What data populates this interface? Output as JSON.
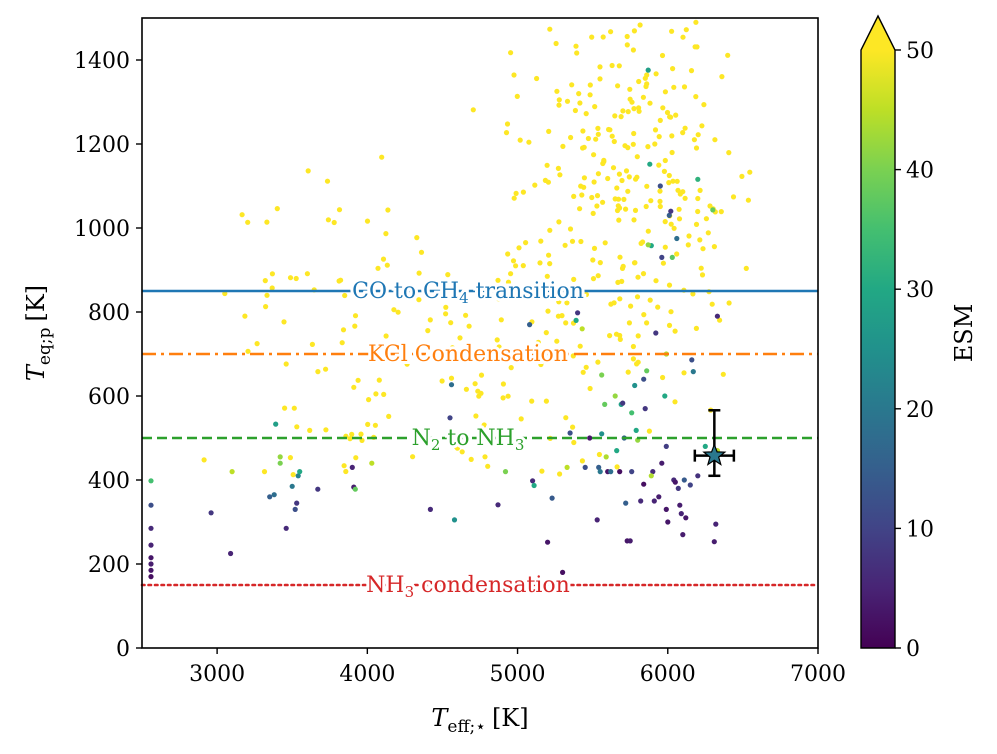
{
  "chart_data": {
    "type": "scatter",
    "xlabel": {
      "main": "T",
      "sub": "eff;⋆",
      "unit": "[K]"
    },
    "ylabel": {
      "main": "T",
      "sub": "eq;p",
      "unit": "[K]"
    },
    "xlim": [
      2500,
      7000
    ],
    "ylim": [
      0,
      1500
    ],
    "x_ticks": [
      3000,
      4000,
      5000,
      6000,
      7000
    ],
    "y_ticks": [
      0,
      200,
      400,
      600,
      800,
      1000,
      1200,
      1400
    ],
    "colorbar": {
      "label": "ESM",
      "range": [
        0,
        50
      ],
      "ticks": [
        0,
        10,
        20,
        30,
        40,
        50
      ],
      "extend": "max",
      "colormap": "viridis"
    },
    "reference_lines": [
      {
        "y": 850,
        "label": "CO to CH",
        "sub": "4",
        "label_after": " transition",
        "style": "solid",
        "color": "#1f77b4"
      },
      {
        "y": 700,
        "label": "KCl Condensation",
        "sub": "",
        "label_after": "",
        "style": "dashdot",
        "color": "#ff7f0e"
      },
      {
        "y": 500,
        "label": "N",
        "sub": "2",
        "label_after": " to NH",
        "sub2": "3",
        "style": "dashed",
        "color": "#2ca02c"
      },
      {
        "y": 150,
        "label": "NH",
        "sub": "3",
        "label_after": " condensation",
        "style": "dotted",
        "color": "#d62728"
      }
    ],
    "highlight": {
      "x": 6310,
      "y": 458,
      "x_err": [
        130,
        130
      ],
      "y_err": [
        48,
        108
      ],
      "esm": 20
    },
    "points_low_esm": [
      [
        2560,
        170,
        2
      ],
      [
        2560,
        185,
        3
      ],
      [
        2560,
        200,
        4
      ],
      [
        2560,
        215,
        3
      ],
      [
        2560,
        245,
        5
      ],
      [
        2560,
        285,
        6
      ],
      [
        2560,
        340,
        12
      ],
      [
        2560,
        398,
        35
      ],
      [
        2960,
        322,
        8
      ],
      [
        3090,
        225,
        5
      ],
      [
        3100,
        420,
        45
      ],
      [
        3350,
        360,
        15
      ],
      [
        3380,
        365,
        18
      ],
      [
        3390,
        533,
        28
      ],
      [
        3420,
        440,
        40
      ],
      [
        3420,
        455,
        42
      ],
      [
        3460,
        285,
        6
      ],
      [
        3500,
        385,
        20
      ],
      [
        3520,
        330,
        12
      ],
      [
        3530,
        345,
        8
      ],
      [
        3540,
        410,
        22
      ],
      [
        3550,
        420,
        30
      ],
      [
        3670,
        378,
        8
      ],
      [
        3900,
        430,
        5
      ],
      [
        3910,
        383,
        4
      ],
      [
        3920,
        378,
        38
      ],
      [
        4030,
        440,
        45
      ],
      [
        4420,
        330,
        6
      ],
      [
        4550,
        548,
        10
      ],
      [
        4560,
        627,
        18
      ],
      [
        4580,
        305,
        25
      ],
      [
        4870,
        341,
        6
      ],
      [
        4920,
        420,
        40
      ],
      [
        5080,
        770,
        15
      ],
      [
        5100,
        398,
        6
      ],
      [
        5110,
        387,
        30
      ],
      [
        5200,
        252,
        3
      ],
      [
        5230,
        357,
        14
      ],
      [
        5300,
        180,
        2
      ],
      [
        5330,
        430,
        45
      ],
      [
        5350,
        512,
        12
      ],
      [
        5390,
        780,
        30
      ],
      [
        5400,
        798,
        8
      ],
      [
        5430,
        760,
        45
      ],
      [
        5450,
        430,
        12
      ],
      [
        5480,
        500,
        3
      ],
      [
        5530,
        305,
        5
      ],
      [
        5540,
        430,
        15
      ],
      [
        5550,
        420,
        20
      ],
      [
        5560,
        510,
        25
      ],
      [
        5580,
        580,
        38
      ],
      [
        5590,
        455,
        44
      ],
      [
        5600,
        420,
        3
      ],
      [
        5620,
        420,
        18
      ],
      [
        5650,
        600,
        42
      ],
      [
        5660,
        470,
        30
      ],
      [
        5690,
        580,
        28
      ],
      [
        5700,
        583,
        8
      ],
      [
        5710,
        500,
        15
      ],
      [
        5720,
        345,
        15
      ],
      [
        5730,
        255,
        3
      ],
      [
        5750,
        255,
        4
      ],
      [
        5760,
        420,
        10
      ],
      [
        5780,
        625,
        25
      ],
      [
        5790,
        518,
        30
      ],
      [
        5800,
        495,
        42
      ],
      [
        5820,
        350,
        6
      ],
      [
        5840,
        640,
        12
      ],
      [
        5850,
        570,
        8
      ],
      [
        5860,
        660,
        38
      ],
      [
        5870,
        1376,
        28
      ],
      [
        5880,
        1152,
        30
      ],
      [
        5890,
        958,
        30
      ],
      [
        5900,
        420,
        6
      ],
      [
        5910,
        350,
        5
      ],
      [
        5920,
        750,
        8
      ],
      [
        5940,
        360,
        4
      ],
      [
        5950,
        1100,
        12
      ],
      [
        5960,
        930,
        10
      ],
      [
        5980,
        600,
        30
      ],
      [
        5990,
        700,
        44
      ],
      [
        6000,
        300,
        3
      ],
      [
        6010,
        1030,
        15
      ],
      [
        6020,
        1040,
        8
      ],
      [
        6040,
        400,
        6
      ],
      [
        6050,
        395,
        3
      ],
      [
        6060,
        975,
        18
      ],
      [
        6070,
        380,
        8
      ],
      [
        6080,
        340,
        4
      ],
      [
        6090,
        320,
        5
      ],
      [
        6110,
        400,
        14
      ],
      [
        6120,
        310,
        3
      ],
      [
        6150,
        388,
        10
      ],
      [
        6160,
        686,
        12
      ],
      [
        6170,
        658,
        20
      ],
      [
        6200,
        1116,
        32
      ],
      [
        6300,
        1043,
        38
      ],
      [
        6310,
        253,
        4
      ],
      [
        6320,
        295,
        5
      ],
      [
        6330,
        790,
        6
      ],
      [
        6330,
        470,
        45
      ],
      [
        6200,
        410,
        7
      ],
      [
        5960,
        440,
        4
      ],
      [
        5840,
        390,
        2
      ],
      [
        5760,
        560,
        35
      ],
      [
        5990,
        480,
        9
      ],
      [
        6250,
        480,
        30
      ],
      [
        5680,
        420,
        2
      ],
      [
        6030,
        930,
        37
      ],
      [
        5870,
        960,
        42
      ],
      [
        5560,
        650,
        40
      ],
      [
        5990,
        330,
        3
      ],
      [
        5890,
        410,
        44
      ],
      [
        6100,
        270,
        4
      ]
    ]
  }
}
